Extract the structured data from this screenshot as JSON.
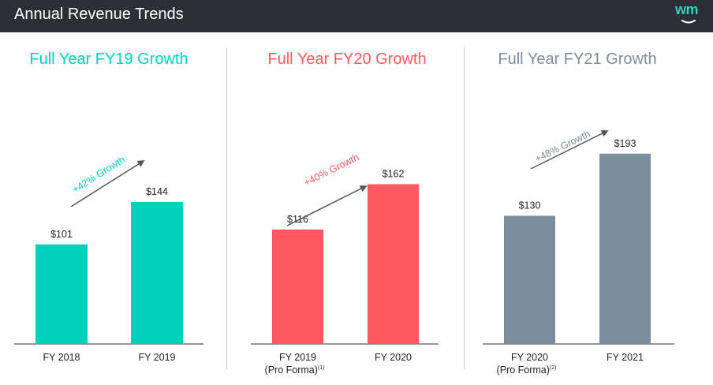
{
  "header": {
    "title": "Annual Revenue Trends",
    "logo_text": "wm"
  },
  "colors": {
    "header_bg": "#2b2f36",
    "fy19": "#00d1bd",
    "fy20": "#ff5a5f",
    "fy21": "#7b8e9c"
  },
  "chart_data": [
    {
      "type": "bar",
      "title": "Full Year FY19 Growth",
      "categories": [
        "FY 2018",
        "FY 2019"
      ],
      "values": [
        101,
        144
      ],
      "value_labels": [
        "$101",
        "$144"
      ],
      "growth_label": "+42% Growth",
      "color": "#00d1bd"
    },
    {
      "type": "bar",
      "title": "Full Year FY20 Growth",
      "categories": [
        "FY 2019",
        "FY 2020"
      ],
      "category_sublabels": [
        "(Pro Forma)",
        ""
      ],
      "category_footnotes": [
        "(1)",
        ""
      ],
      "values": [
        116,
        162
      ],
      "value_labels": [
        "$116",
        "$162"
      ],
      "growth_label": "+40% Growth",
      "color": "#ff5a5f"
    },
    {
      "type": "bar",
      "title": "Full Year FY21 Growth",
      "categories": [
        "FY 2020",
        "FY 2021"
      ],
      "category_sublabels": [
        "(Pro Forma)",
        ""
      ],
      "category_footnotes": [
        "(2)",
        ""
      ],
      "values": [
        130,
        193
      ],
      "value_labels": [
        "$130",
        "$193"
      ],
      "growth_label": "+48% Growth",
      "color": "#7b8e9c"
    }
  ]
}
